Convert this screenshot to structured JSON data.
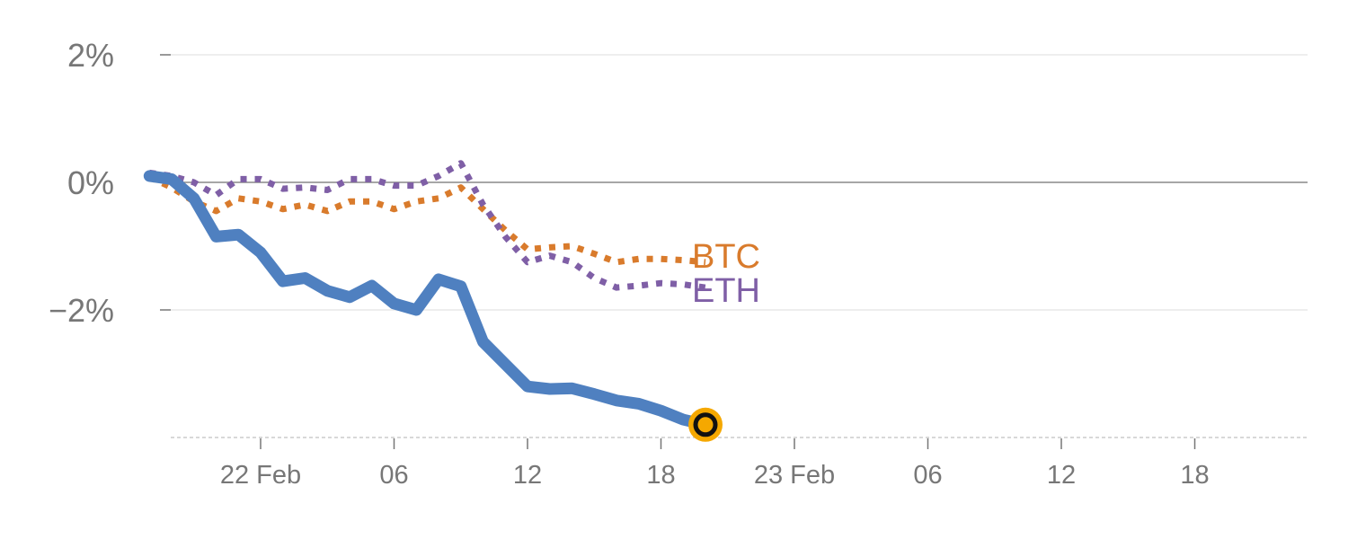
{
  "chart_data": {
    "type": "line",
    "title": "",
    "xlabel": "",
    "ylabel": "",
    "x_unit": "hours since 21 Feb 18:00",
    "xlim": [
      0,
      51
    ],
    "ylim": [
      -3.9,
      2.0
    ],
    "y_ticks": [
      {
        "value": 2,
        "label": "2%"
      },
      {
        "value": 0,
        "label": "0%"
      },
      {
        "value": -2,
        "label": "−2%"
      }
    ],
    "x_ticks": [
      {
        "value": 6,
        "label": "22 Feb"
      },
      {
        "value": 12,
        "label": "06"
      },
      {
        "value": 18,
        "label": "12"
      },
      {
        "value": 24,
        "label": "18"
      },
      {
        "value": 30,
        "label": "23 Feb"
      },
      {
        "value": 36,
        "label": "06"
      },
      {
        "value": 42,
        "label": "12"
      },
      {
        "value": 48,
        "label": "18"
      }
    ],
    "colors": {
      "main": "#4f80c0",
      "btc": "#d97b2c",
      "eth": "#7f5fa6",
      "marker_fill": "#f5a800",
      "zero_line": "#888888",
      "grid": "#e8e8e8",
      "tick_text": "#777777"
    },
    "series": [
      {
        "name": "main",
        "style": "solid",
        "x": [
          1,
          2,
          3,
          4,
          5,
          6,
          7,
          8,
          9,
          10,
          11,
          12,
          13,
          14,
          15,
          16,
          17,
          18,
          19,
          20,
          21,
          22,
          23,
          24,
          25,
          26
        ],
        "values": [
          0.1,
          0.05,
          -0.25,
          -0.85,
          -0.82,
          -1.1,
          -1.55,
          -1.5,
          -1.7,
          -1.8,
          -1.62,
          -1.9,
          -2.0,
          -1.52,
          -1.63,
          -2.5,
          -2.85,
          -3.2,
          -3.24,
          -3.23,
          -3.32,
          -3.42,
          -3.47,
          -3.58,
          -3.72,
          -3.8
        ]
      },
      {
        "name": "BTC",
        "style": "dotted",
        "x": [
          1,
          2,
          3,
          4,
          5,
          6,
          7,
          8,
          9,
          10,
          11,
          12,
          13,
          14,
          15,
          16,
          17,
          18,
          19,
          20,
          21,
          22,
          23,
          24,
          25,
          26
        ],
        "values": [
          0.08,
          -0.08,
          -0.3,
          -0.45,
          -0.25,
          -0.3,
          -0.42,
          -0.35,
          -0.45,
          -0.3,
          -0.3,
          -0.42,
          -0.3,
          -0.25,
          -0.08,
          -0.42,
          -0.75,
          -1.05,
          -1.02,
          -1.0,
          -1.12,
          -1.25,
          -1.2,
          -1.2,
          -1.22,
          -1.25
        ]
      },
      {
        "name": "ETH",
        "style": "dotted",
        "x": [
          1,
          2,
          3,
          4,
          5,
          6,
          7,
          8,
          9,
          10,
          11,
          12,
          13,
          14,
          15,
          16,
          17,
          18,
          19,
          20,
          21,
          22,
          23,
          24,
          25,
          26
        ],
        "values": [
          0.15,
          0.1,
          0.0,
          -0.2,
          0.05,
          0.05,
          -0.1,
          -0.08,
          -0.12,
          0.05,
          0.05,
          -0.05,
          -0.05,
          0.1,
          0.3,
          -0.35,
          -0.85,
          -1.25,
          -1.15,
          -1.25,
          -1.5,
          -1.65,
          -1.62,
          -1.58,
          -1.6,
          -1.65
        ]
      }
    ],
    "series_labels": {
      "btc": "BTC",
      "eth": "ETH"
    },
    "end_marker": {
      "x": 26,
      "y": -3.8
    }
  }
}
